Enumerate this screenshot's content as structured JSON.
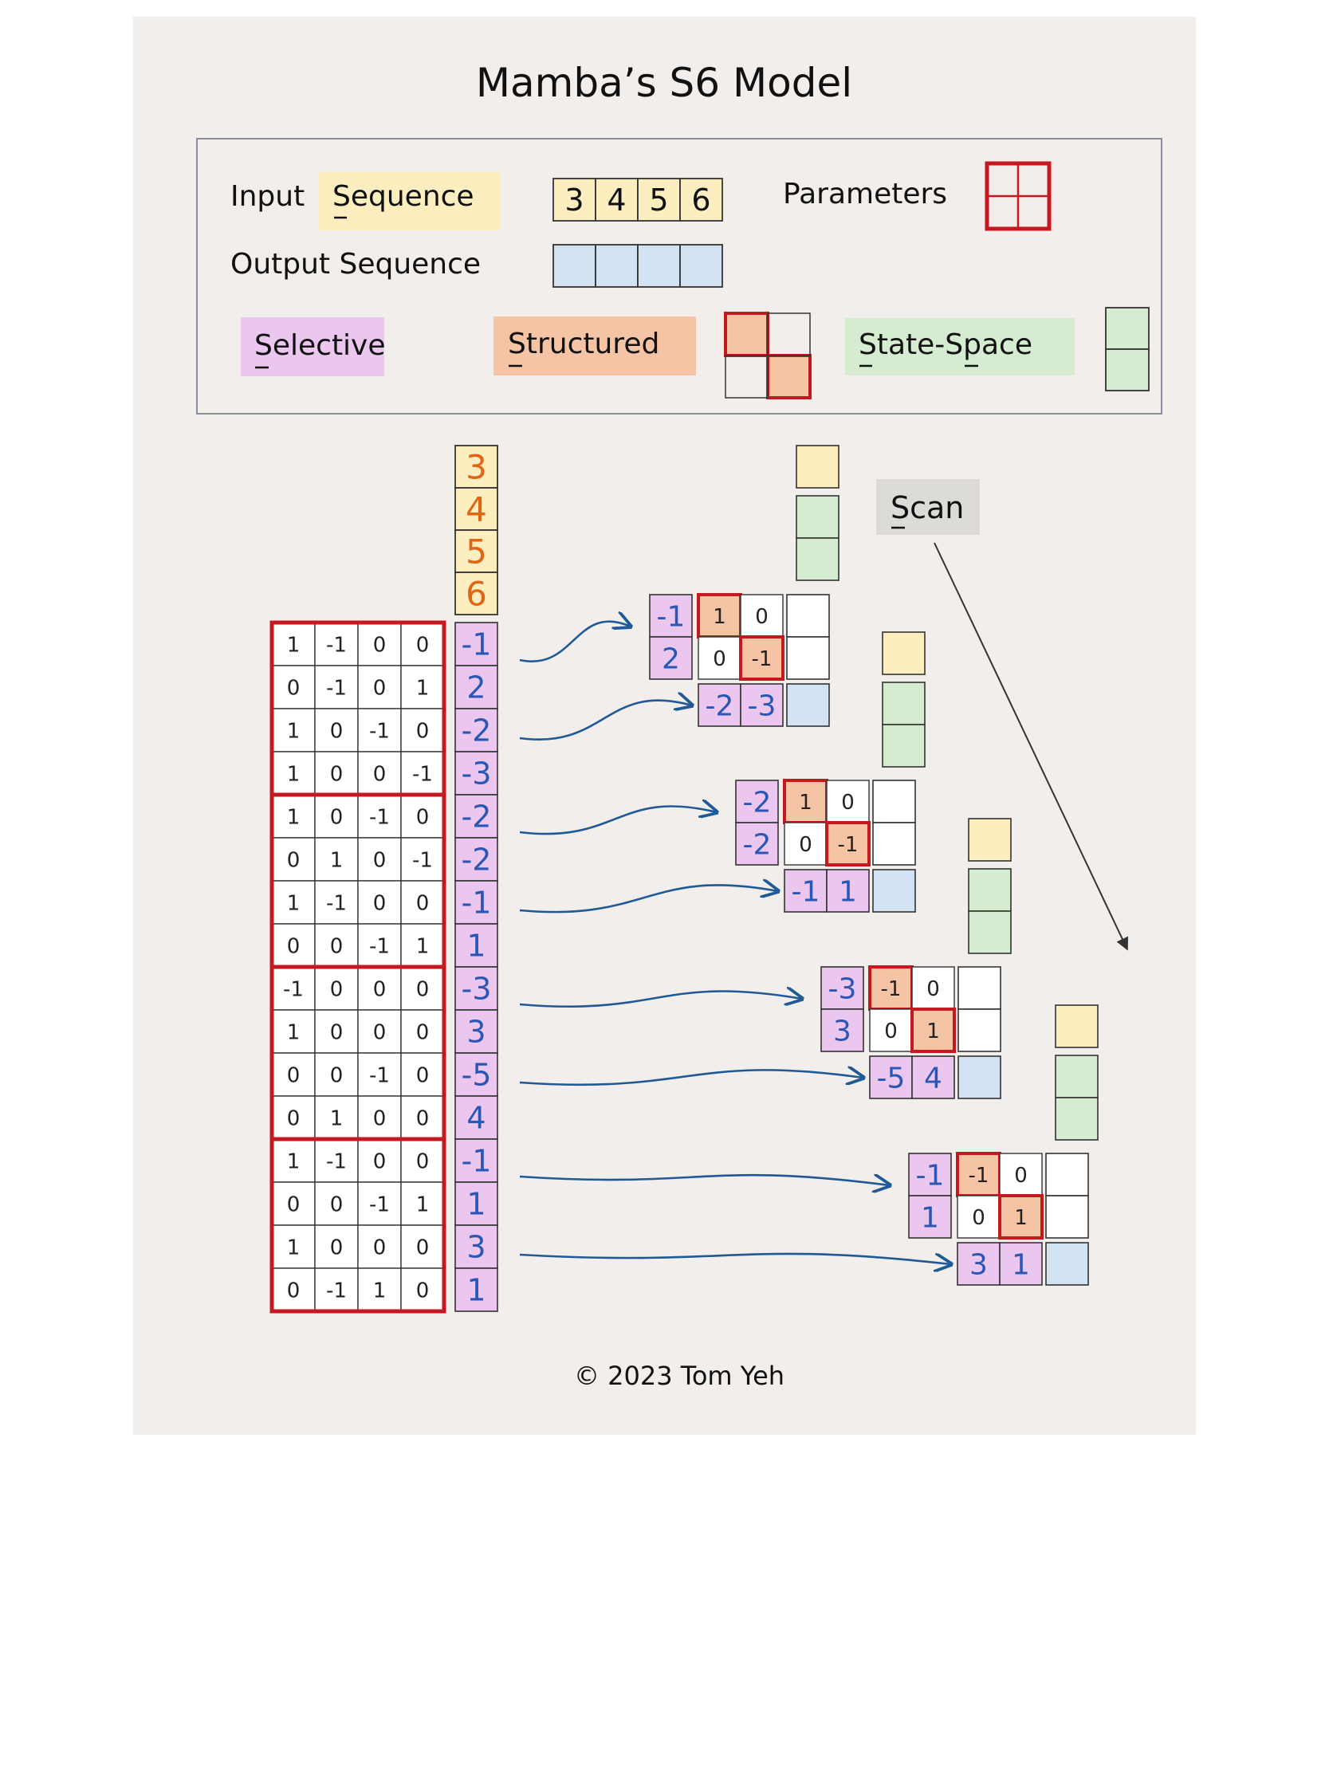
{
  "title": "Mamba’s S6 Model",
  "legend": {
    "input_label": "Input",
    "sequence_word": "Sequence",
    "input_values": [
      "3",
      "4",
      "5",
      "6"
    ],
    "parameters_label": "Parameters",
    "output_label": "Output Sequence",
    "selective_label": "Selective",
    "structured_label": "Structured",
    "state_space_label": "State-Space"
  },
  "input_column": [
    "3",
    "4",
    "5",
    "6"
  ],
  "matrices": [
    [
      [
        "1",
        "-1",
        "0",
        "0"
      ],
      [
        "0",
        "-1",
        "0",
        "1"
      ],
      [
        "1",
        "0",
        "-1",
        "0"
      ],
      [
        "1",
        "0",
        "0",
        "-1"
      ]
    ],
    [
      [
        "1",
        "0",
        "-1",
        "0"
      ],
      [
        "0",
        "1",
        "0",
        "-1"
      ],
      [
        "1",
        "-1",
        "0",
        "0"
      ],
      [
        "0",
        "0",
        "-1",
        "1"
      ]
    ],
    [
      [
        "-1",
        "0",
        "0",
        "0"
      ],
      [
        "1",
        "0",
        "0",
        "0"
      ],
      [
        "0",
        "0",
        "-1",
        "0"
      ],
      [
        "0",
        "1",
        "0",
        "0"
      ]
    ],
    [
      [
        "1",
        "-1",
        "0",
        "0"
      ],
      [
        "0",
        "0",
        "-1",
        "1"
      ],
      [
        "1",
        "0",
        "0",
        "0"
      ],
      [
        "0",
        "-1",
        "1",
        "0"
      ]
    ]
  ],
  "selective_values": [
    [
      "-1",
      "2",
      "-2",
      "-3"
    ],
    [
      "-2",
      "-2",
      "-1",
      "1"
    ],
    [
      "-3",
      "3",
      "-5",
      "4"
    ],
    [
      "-1",
      "1",
      "3",
      "1"
    ]
  ],
  "steps": [
    {
      "selective": [
        "-1",
        "2"
      ],
      "structured": [
        [
          "1",
          "0"
        ],
        [
          "0",
          "-1"
        ]
      ],
      "output": [
        "-2",
        "-3"
      ]
    },
    {
      "selective": [
        "-2",
        "-2"
      ],
      "structured": [
        [
          "1",
          "0"
        ],
        [
          "0",
          "-1"
        ]
      ],
      "output": [
        "-1",
        "1"
      ]
    },
    {
      "selective": [
        "-3",
        "3"
      ],
      "structured": [
        [
          "-1",
          "0"
        ],
        [
          "0",
          "1"
        ]
      ],
      "output": [
        "-5",
        "4"
      ]
    },
    {
      "selective": [
        "-1",
        "1"
      ],
      "structured": [
        [
          "-1",
          "0"
        ],
        [
          "0",
          "1"
        ]
      ],
      "output": [
        "3",
        "1"
      ]
    }
  ],
  "scan_label": "Scan",
  "copyright": "©  2023 Tom Yeh",
  "colors": {
    "input": "#fdeec0",
    "output": "#d3e2f3",
    "selective": "#ebc7ef",
    "structured": "#f5c4a5",
    "state_space": "#d6ecd0",
    "param_border": "#c6191f",
    "arrow": "#1f5a96",
    "handwritten_blue": "#2a56b4",
    "handwritten_orange": "#e06414"
  }
}
